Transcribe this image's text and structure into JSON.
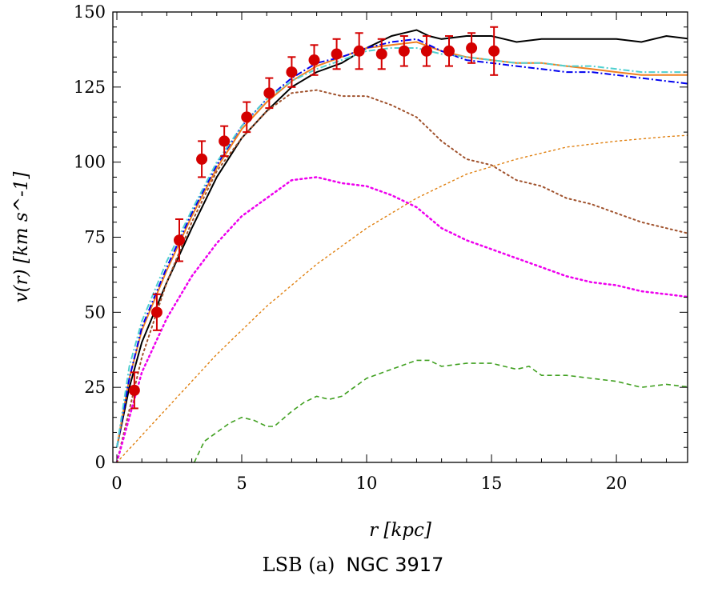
{
  "chart_data": {
    "type": "line",
    "xlabel": "r [kpc]",
    "ylabel": "v(r) [km s^-1]",
    "xlim": [
      -0.16,
      22.85
    ],
    "ylim": [
      0,
      150
    ],
    "xticks": [
      "0",
      "5",
      "10",
      "15",
      "20"
    ],
    "yticks": [
      "0",
      "25",
      "50",
      "75",
      "100",
      "125",
      "150"
    ],
    "grid": false,
    "caption_prefix": "LSB (a)",
    "caption_name": "NGC 3917",
    "observed": {
      "color": "#d40000",
      "x": [
        0.7,
        1.6,
        2.5,
        3.4,
        4.3,
        5.2,
        6.1,
        7.0,
        7.9,
        8.8,
        9.7,
        10.6,
        11.5,
        12.4,
        13.3,
        14.2,
        15.1
      ],
      "y": [
        24,
        50,
        74,
        101,
        107,
        115,
        123,
        130,
        134,
        136,
        137,
        136,
        137,
        137,
        137,
        138,
        137
      ],
      "err": [
        6,
        6,
        7,
        6,
        5,
        5,
        5,
        5,
        5,
        5,
        6,
        5,
        5,
        5,
        5,
        5,
        8
      ]
    },
    "series": [
      {
        "color": "#000000",
        "style": "solid",
        "width": 2,
        "x": [
          0,
          0.5,
          1,
          2,
          3,
          4,
          5,
          6,
          7,
          8,
          9,
          10,
          11,
          12,
          12.5,
          13,
          14,
          15,
          16,
          17,
          18,
          19,
          20,
          21,
          22,
          23
        ],
        "y": [
          5,
          25,
          40,
          60,
          78,
          95,
          108,
          117,
          125,
          130,
          133,
          138,
          142,
          144,
          142,
          141,
          142,
          142,
          140,
          141,
          141,
          141,
          141,
          140,
          142,
          141
        ]
      },
      {
        "color": "#f08020",
        "style": "solid",
        "width": 2,
        "x": [
          0,
          0.5,
          1,
          2,
          3,
          4,
          5,
          6,
          7,
          8,
          9,
          10,
          11,
          12,
          13,
          14,
          15,
          16,
          17,
          18,
          19,
          20,
          21,
          22,
          23
        ],
        "y": [
          5,
          28,
          44,
          64,
          82,
          98,
          111,
          120,
          127,
          132,
          135,
          138,
          139,
          140,
          137,
          135,
          134,
          133,
          133,
          132,
          131,
          130,
          129,
          129,
          129
        ]
      },
      {
        "color": "#0000ee",
        "style": "dashdot",
        "width": 2,
        "x": [
          0,
          0.5,
          1,
          2,
          3,
          4,
          5,
          6,
          7,
          8,
          9,
          10,
          11,
          12,
          13,
          14,
          15,
          16,
          17,
          18,
          19,
          20,
          21,
          22,
          23
        ],
        "y": [
          5,
          28,
          45,
          65,
          83,
          99,
          112,
          121,
          128,
          133,
          135,
          138,
          140,
          141,
          137,
          134,
          133,
          132,
          131,
          130,
          130,
          129,
          128,
          127,
          126
        ]
      },
      {
        "color": "#50d0d0",
        "style": "dashdot",
        "width": 2,
        "x": [
          0,
          0.5,
          1,
          2,
          3,
          4,
          5,
          6,
          7,
          8,
          9,
          10,
          11,
          12,
          13,
          14,
          15,
          16,
          17,
          18,
          19,
          20,
          21,
          22,
          23
        ],
        "y": [
          5,
          32,
          47,
          67,
          84,
          100,
          112,
          121,
          127,
          131,
          134,
          137,
          138,
          138,
          136,
          135,
          134,
          133,
          133,
          132,
          132,
          131,
          130,
          130,
          130
        ]
      },
      {
        "color": "#a0522d",
        "style": "dotted",
        "width": 2,
        "x": [
          0,
          1,
          2,
          3,
          4,
          5,
          6,
          7,
          8,
          9,
          10,
          11,
          12,
          13,
          14,
          15,
          16,
          17,
          18,
          19,
          20,
          21,
          22,
          23
        ],
        "y": [
          0,
          35,
          60,
          80,
          97,
          108,
          117,
          123,
          124,
          122,
          122,
          119,
          115,
          107,
          101,
          99,
          94,
          92,
          88,
          86,
          83,
          80,
          78,
          76
        ]
      },
      {
        "color": "#ee00ee",
        "style": "dotted",
        "width": 2.5,
        "x": [
          0,
          1,
          2,
          3,
          4,
          5,
          6,
          7,
          8,
          9,
          10,
          11,
          12,
          13,
          14,
          15,
          16,
          17,
          18,
          19,
          20,
          21,
          22,
          23
        ],
        "y": [
          0,
          30,
          48,
          62,
          73,
          82,
          88,
          94,
          95,
          93,
          92,
          89,
          85,
          78,
          74,
          71,
          68,
          65,
          62,
          60,
          59,
          57,
          56,
          55
        ]
      },
      {
        "color": "#e08010",
        "style": "dotted",
        "width": 1.4,
        "x": [
          0,
          2,
          4,
          6,
          8,
          10,
          12,
          14,
          16,
          18,
          20,
          22,
          23
        ],
        "y": [
          0,
          18,
          36,
          52,
          66,
          78,
          88,
          96,
          101,
          105,
          107,
          108.5,
          109
        ]
      },
      {
        "color": "#40a020",
        "style": "dashed",
        "width": 1.6,
        "x": [
          3.1,
          3.5,
          4.5,
          5,
          5.5,
          6,
          6.3,
          7,
          7.5,
          8,
          8.5,
          9,
          10,
          11,
          12,
          12.5,
          13,
          14,
          15,
          16,
          16.5,
          17,
          18,
          19,
          20,
          21,
          22,
          23
        ],
        "y": [
          0,
          7,
          13,
          15,
          14,
          12,
          12,
          17,
          20,
          22,
          21,
          22,
          28,
          31,
          34,
          34,
          32,
          33,
          33,
          31,
          32,
          29,
          29,
          28,
          27,
          25,
          26,
          25
        ]
      }
    ]
  }
}
